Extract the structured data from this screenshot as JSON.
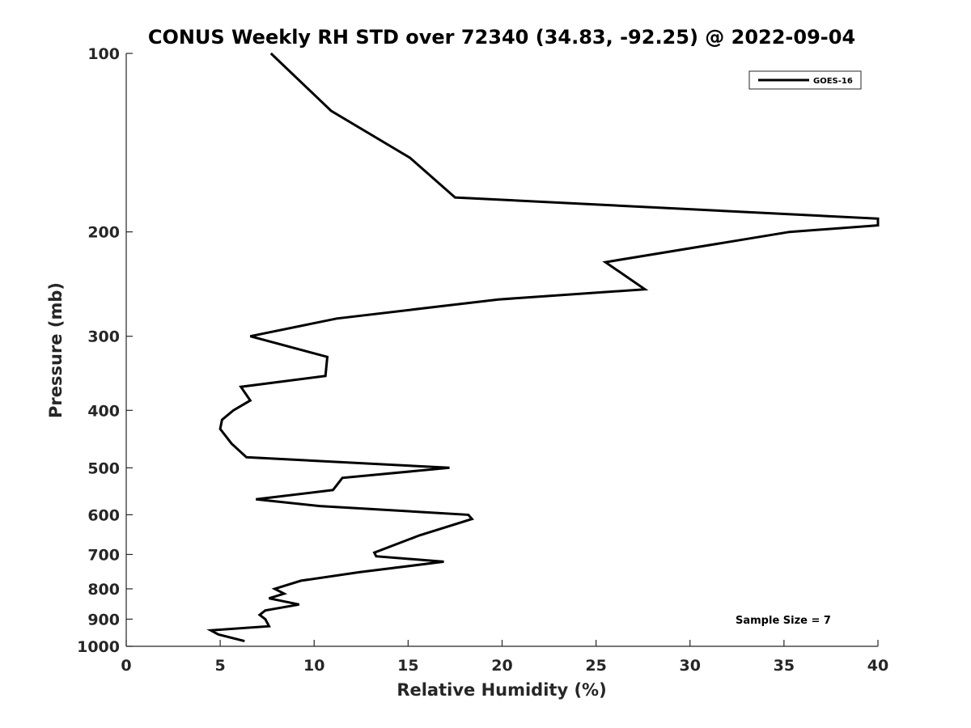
{
  "chart_data": {
    "type": "line",
    "title": "CONUS Weekly RH STD over 72340 (34.83, -92.25) @ 2022-09-04",
    "xlabel": "Relative Humidity (%)",
    "ylabel": "Pressure (mb)",
    "xlim": [
      0,
      40
    ],
    "ylim": [
      100,
      1000
    ],
    "yscale": "log",
    "y_reversed": true,
    "grid": false,
    "legend_position": "top-right",
    "xticks": [
      "0",
      "5",
      "10",
      "15",
      "20",
      "25",
      "30",
      "35",
      "40"
    ],
    "yticks": [
      "100",
      "200",
      "300",
      "400",
      "500",
      "600",
      "700",
      "800",
      "900",
      "1000"
    ],
    "line_color": "#000000",
    "annotation": "Sample Size = 7",
    "series": [
      {
        "name": "GOES-16",
        "x": [
          7.7,
          10.9,
          15.1,
          17.5,
          40.0,
          40.0,
          35.3,
          25.5,
          27.6,
          19.8,
          11.2,
          6.6,
          10.7,
          10.6,
          6.1,
          6.6,
          5.7,
          5.1,
          5.0,
          5.6,
          6.4,
          17.2,
          11.5,
          11.0,
          6.9,
          10.3,
          18.2,
          18.4,
          15.6,
          13.2,
          13.3,
          16.9,
          12.4,
          9.3,
          7.9,
          8.4,
          7.6,
          9.2,
          7.4,
          7.1,
          7.4,
          7.6,
          4.5,
          4.9,
          6.3
        ],
        "y": [
          100,
          125,
          150,
          175,
          190,
          195,
          200,
          225,
          250,
          260,
          280,
          300,
          325,
          350,
          365,
          385,
          400,
          415,
          430,
          455,
          480,
          500,
          520,
          545,
          565,
          580,
          600,
          610,
          650,
          695,
          705,
          720,
          750,
          775,
          800,
          815,
          830,
          850,
          870,
          885,
          900,
          925,
          940,
          955,
          980
        ]
      }
    ]
  }
}
